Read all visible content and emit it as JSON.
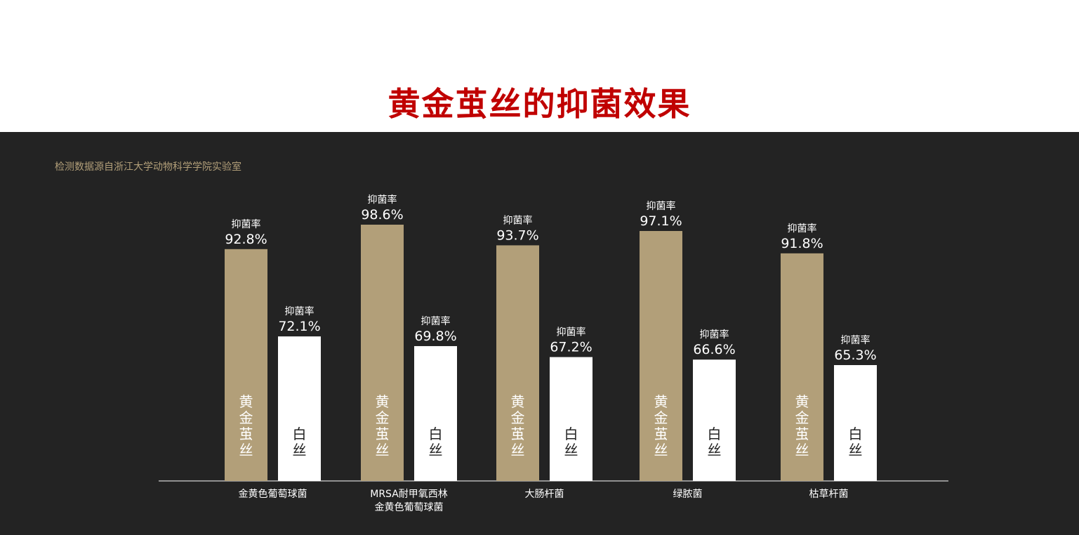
{
  "title": "黄金茧丝的抑菌效果",
  "source_note": "检测数据源自浙江大学动物科学学院实验室",
  "colors": {
    "title": "#c00000",
    "panel_bg": "#232323",
    "gold_bar": "#b29f79",
    "white_bar": "#ffffff",
    "note": "#b29f79",
    "text": "#ffffff",
    "dark_text": "#232323"
  },
  "chart_data": {
    "type": "bar",
    "categories": [
      "金黄色葡萄球菌",
      "MRSA耐甲氧西林\n金黄色葡萄球菌",
      "大肠杆菌",
      "绿脓菌",
      "枯草杆菌"
    ],
    "series": [
      {
        "name": "黄金茧丝",
        "values": [
          92.8,
          98.6,
          93.7,
          97.1,
          91.8
        ],
        "value_labels": [
          "92.8%",
          "98.6%",
          "93.7%",
          "97.1%",
          "91.8%"
        ]
      },
      {
        "name": "白丝",
        "values": [
          72.1,
          69.8,
          67.2,
          66.6,
          65.3
        ],
        "value_labels": [
          "72.1%",
          "69.8%",
          "67.2%",
          "66.6%",
          "65.3%"
        ]
      }
    ],
    "data_label_caption": "抑菌率",
    "unit": "%",
    "ylim": [
      0,
      100
    ],
    "grid": false,
    "legend": "none (series names printed inside bars)"
  }
}
